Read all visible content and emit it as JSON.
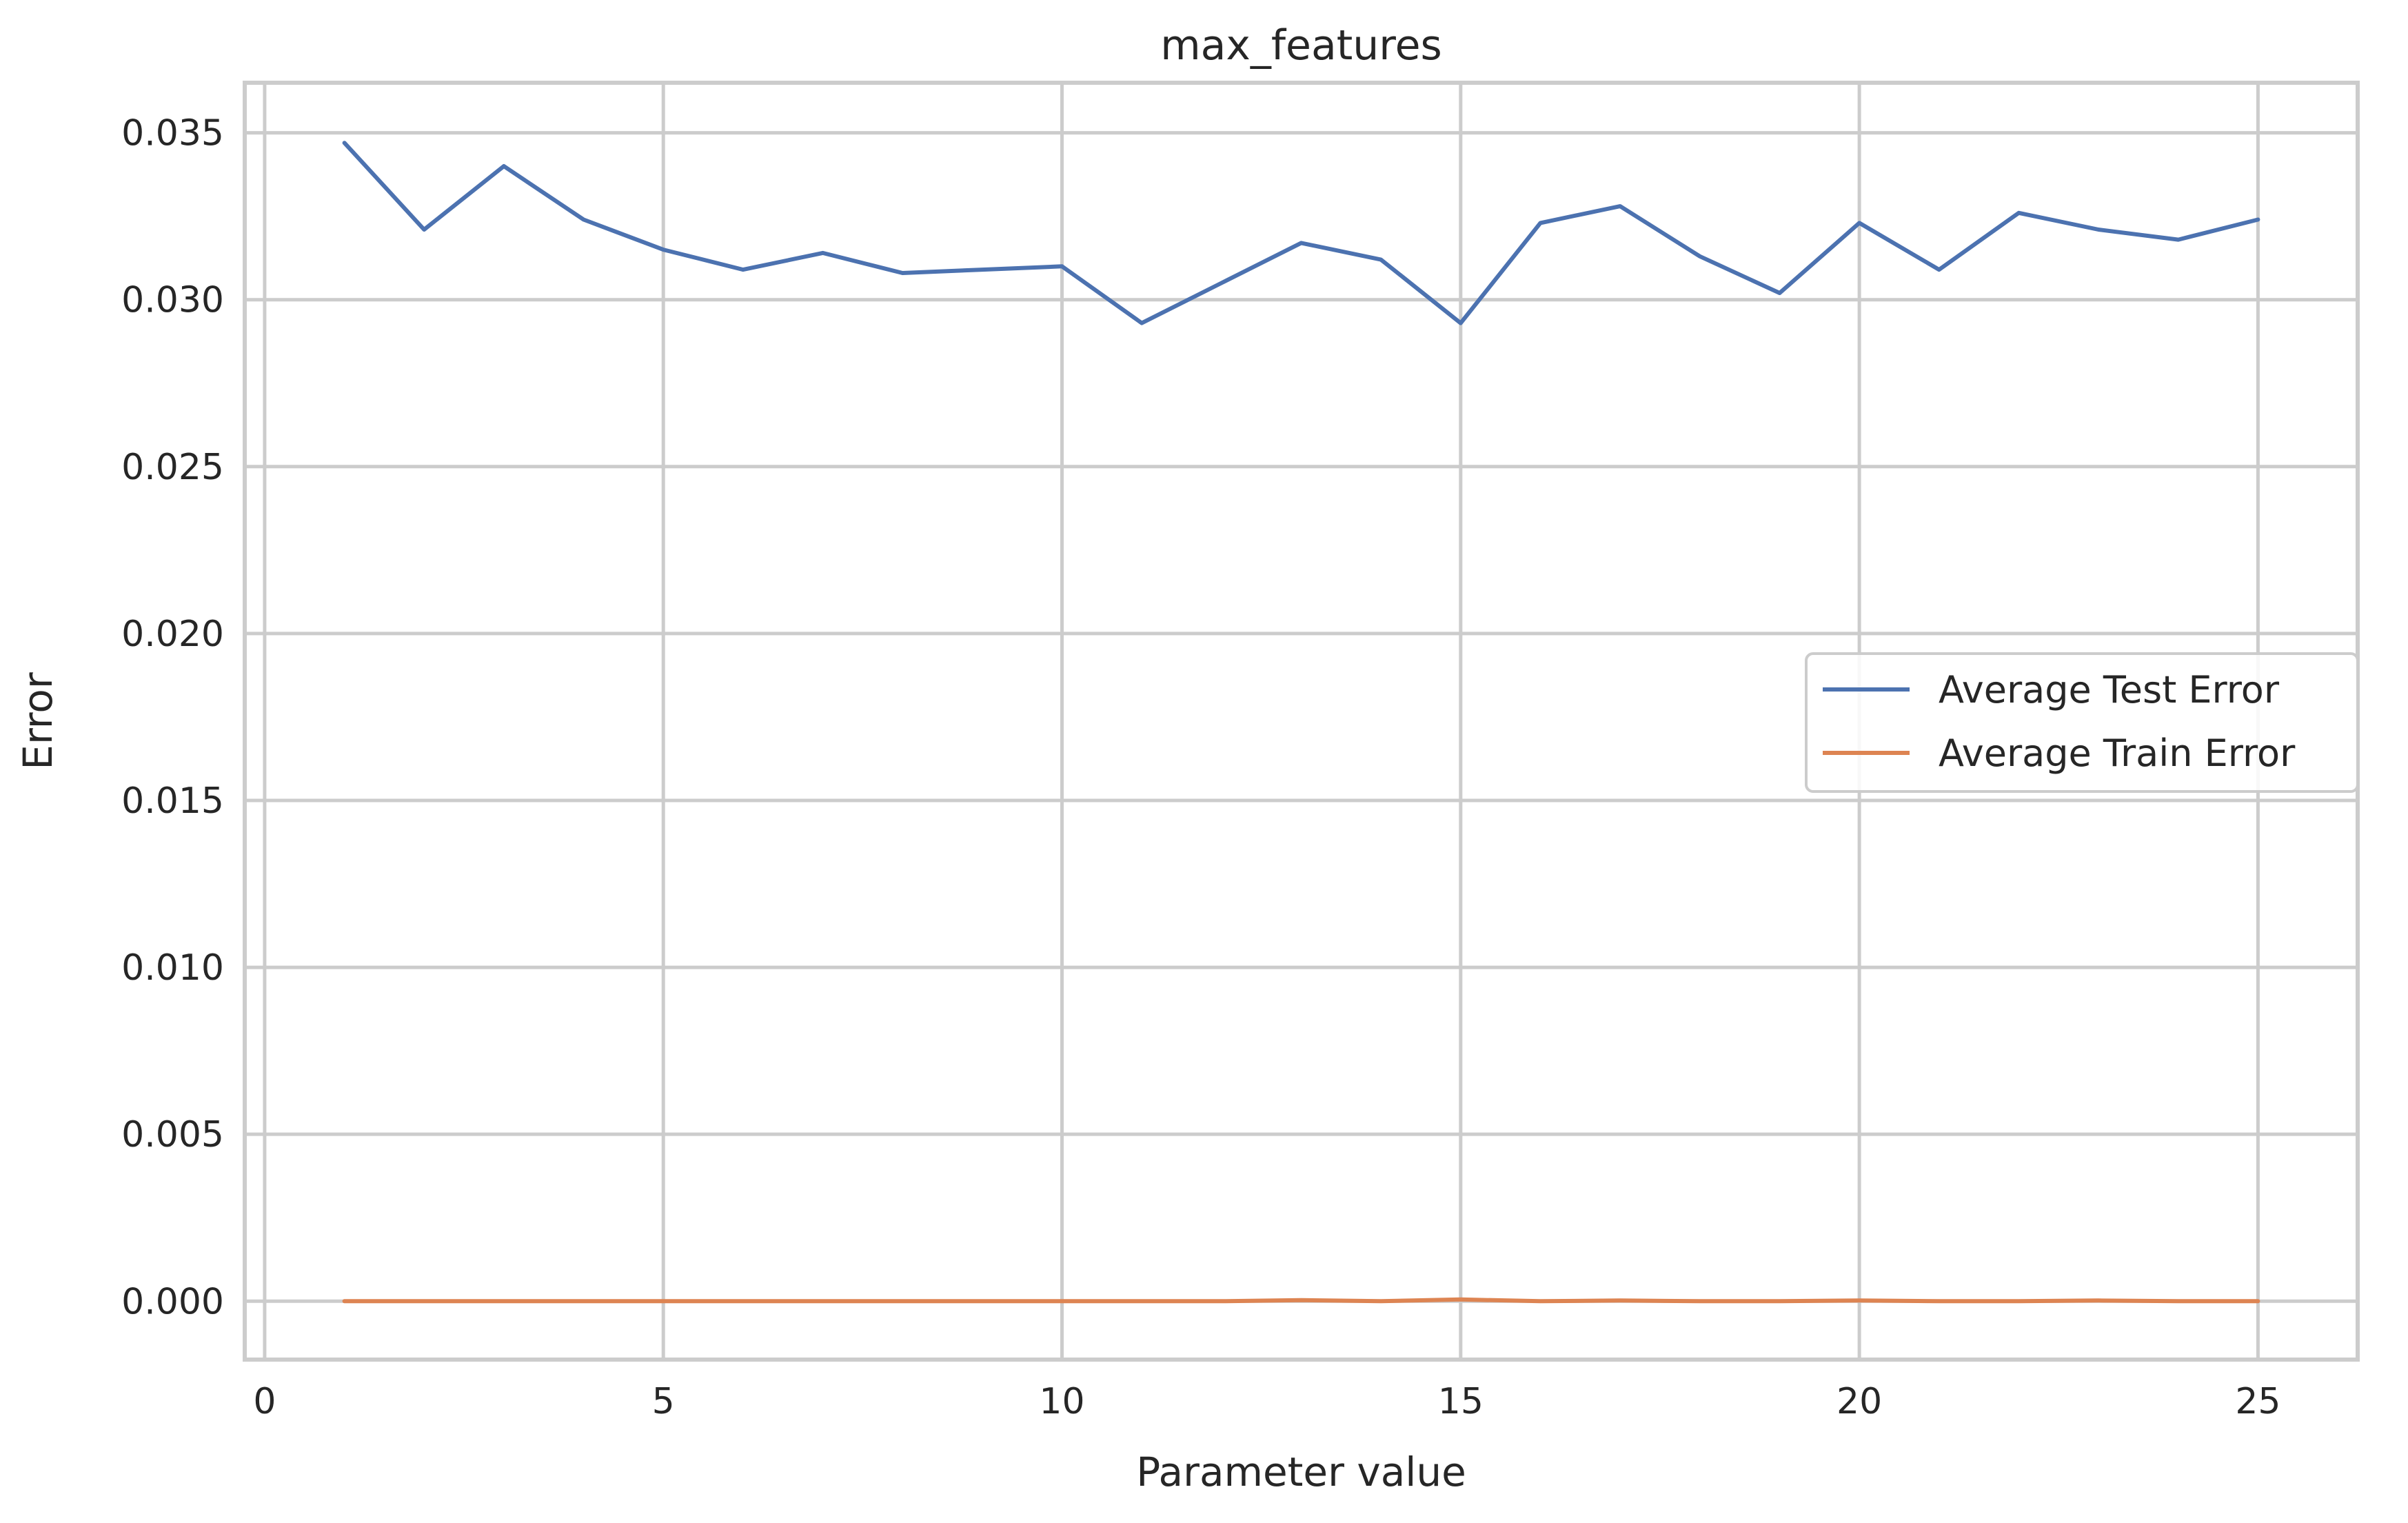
{
  "chart_data": {
    "type": "line",
    "title": "max_features",
    "xlabel": "Parameter value",
    "ylabel": "Error",
    "xlim": [
      -0.25,
      26.25
    ],
    "ylim": [
      -0.00175,
      0.0365
    ],
    "xticks": [
      0,
      5,
      10,
      15,
      20,
      25
    ],
    "xtick_labels": [
      "0",
      "5",
      "10",
      "15",
      "20",
      "25"
    ],
    "yticks": [
      0.0,
      0.005,
      0.01,
      0.015,
      0.02,
      0.025,
      0.03,
      0.035
    ],
    "ytick_labels": [
      "0.000",
      "0.005",
      "0.010",
      "0.015",
      "0.020",
      "0.025",
      "0.030",
      "0.035"
    ],
    "grid": true,
    "legend_position": "center-right",
    "x": [
      1,
      2,
      3,
      4,
      5,
      6,
      7,
      8,
      9,
      10,
      11,
      12,
      13,
      14,
      15,
      16,
      17,
      18,
      19,
      20,
      21,
      22,
      23,
      24,
      25
    ],
    "series": [
      {
        "name": "Average Test Error",
        "color": "#4c72b0",
        "values": [
          0.0347,
          0.0321,
          0.034,
          0.0324,
          0.0315,
          0.0309,
          0.0314,
          0.0308,
          0.0309,
          0.031,
          0.0293,
          0.0305,
          0.0317,
          0.0312,
          0.0293,
          0.0323,
          0.0328,
          0.0313,
          0.0302,
          0.0323,
          0.0309,
          0.0326,
          0.0321,
          0.0318,
          0.0324
        ]
      },
      {
        "name": "Average Train Error",
        "color": "#dd8452",
        "values": [
          0.0,
          0.0,
          0.0,
          0.0,
          0.0,
          0.0,
          0.0,
          0.0,
          0.0,
          0.0,
          0.0,
          0.0,
          3e-05,
          0.0,
          5e-05,
          0.0,
          2e-05,
          0.0,
          0.0,
          2e-05,
          0.0,
          0.0,
          2e-05,
          0.0,
          0.0
        ]
      }
    ]
  }
}
